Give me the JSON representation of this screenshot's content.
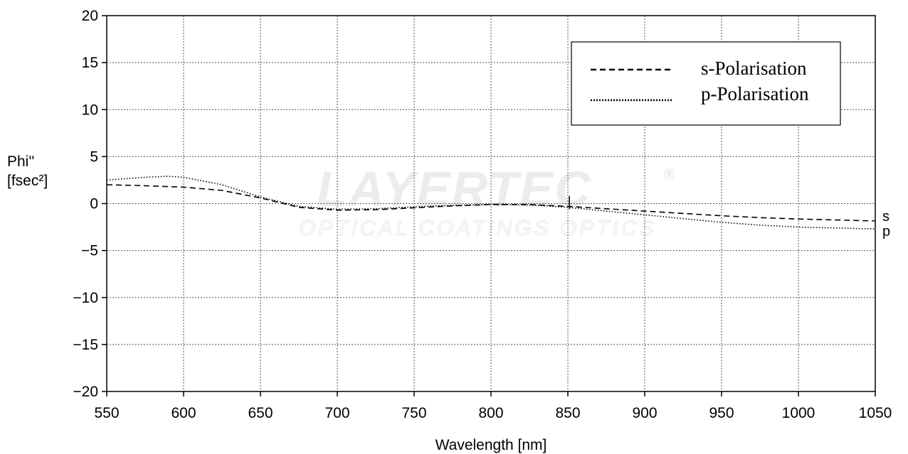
{
  "chart_data": {
    "type": "line",
    "title": "",
    "xlabel": "Wavelength [nm]",
    "ylabel": [
      "Phi''",
      "[fsec²]"
    ],
    "xlim": [
      550,
      1050
    ],
    "ylim": [
      -20,
      20
    ],
    "xticks": [
      550,
      600,
      650,
      700,
      750,
      800,
      850,
      900,
      950,
      1000,
      1050
    ],
    "yticks": [
      20,
      15,
      10,
      5,
      0,
      -5,
      -10,
      -15,
      -20
    ],
    "grid": true,
    "legend_position": "top-right",
    "series": [
      {
        "name": "s-Polarisation",
        "style": "dashed",
        "end_label": "s",
        "points": [
          [
            550,
            2.0
          ],
          [
            575,
            1.9
          ],
          [
            600,
            1.75
          ],
          [
            625,
            1.4
          ],
          [
            650,
            0.6
          ],
          [
            675,
            -0.4
          ],
          [
            700,
            -0.7
          ],
          [
            725,
            -0.65
          ],
          [
            750,
            -0.45
          ],
          [
            775,
            -0.25
          ],
          [
            800,
            -0.1
          ],
          [
            825,
            -0.1
          ],
          [
            850,
            -0.3
          ],
          [
            875,
            -0.55
          ],
          [
            900,
            -0.8
          ],
          [
            925,
            -1.05
          ],
          [
            950,
            -1.3
          ],
          [
            975,
            -1.5
          ],
          [
            1000,
            -1.65
          ],
          [
            1025,
            -1.75
          ],
          [
            1050,
            -1.85
          ]
        ]
      },
      {
        "name": "p-Polarisation",
        "style": "dotted",
        "end_label": "p",
        "points": [
          [
            550,
            2.5
          ],
          [
            575,
            2.8
          ],
          [
            590,
            2.9
          ],
          [
            600,
            2.8
          ],
          [
            625,
            2.0
          ],
          [
            650,
            0.7
          ],
          [
            675,
            -0.3
          ],
          [
            700,
            -0.6
          ],
          [
            725,
            -0.55
          ],
          [
            750,
            -0.35
          ],
          [
            775,
            -0.2
          ],
          [
            800,
            -0.1
          ],
          [
            825,
            -0.15
          ],
          [
            850,
            -0.4
          ],
          [
            875,
            -0.8
          ],
          [
            900,
            -1.2
          ],
          [
            925,
            -1.6
          ],
          [
            950,
            -2.0
          ],
          [
            975,
            -2.3
          ],
          [
            1000,
            -2.5
          ],
          [
            1025,
            -2.6
          ],
          [
            1050,
            -2.7
          ]
        ]
      }
    ]
  },
  "watermark": {
    "brand": "LAYERTEC",
    "registered": "®",
    "tagline": "OPTICAL COATINGS   OPTICS"
  }
}
